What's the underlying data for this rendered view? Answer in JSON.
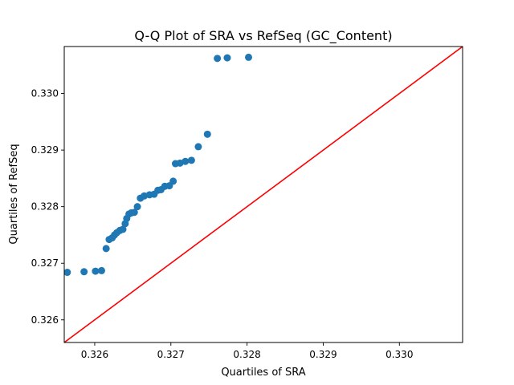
{
  "chart_data": {
    "type": "scatter",
    "title": "Q-Q Plot of SRA vs RefSeq (GC_Content)",
    "xlabel": "Quartiles of SRA",
    "ylabel": "Quartiles of RefSeq",
    "xlim": [
      0.3256,
      0.33083
    ],
    "ylim": [
      0.3256,
      0.33083
    ],
    "x_ticks": [
      0.326,
      0.327,
      0.328,
      0.329,
      0.33
    ],
    "x_tick_labels": [
      "0.326",
      "0.327",
      "0.328",
      "0.329",
      "0.330"
    ],
    "y_ticks": [
      0.326,
      0.327,
      0.328,
      0.329,
      0.33
    ],
    "y_tick_labels": [
      "0.326",
      "0.327",
      "0.328",
      "0.329",
      "0.330"
    ],
    "grid": false,
    "legend": "none",
    "marker_color": "#1f77b4",
    "line_color": "#ff0000",
    "reference_line": {
      "from": [
        0.3256,
        0.3256
      ],
      "to": [
        0.33083,
        0.33083
      ]
    },
    "points": {
      "x": [
        0.32564,
        0.32586,
        0.32601,
        0.32609,
        0.32615,
        0.32619,
        0.32623,
        0.32626,
        0.32629,
        0.32633,
        0.32637,
        0.3264,
        0.32642,
        0.32645,
        0.32648,
        0.32652,
        0.32656,
        0.3266,
        0.32665,
        0.32672,
        0.32678,
        0.32683,
        0.32687,
        0.32692,
        0.32698,
        0.32703,
        0.32706,
        0.32712,
        0.32719,
        0.32727,
        0.32736,
        0.32748,
        0.32761,
        0.32774,
        0.32802
      ],
      "y": [
        0.32684,
        0.32685,
        0.32686,
        0.32687,
        0.32726,
        0.32742,
        0.32745,
        0.3275,
        0.32754,
        0.32758,
        0.3276,
        0.3277,
        0.32779,
        0.32787,
        0.32789,
        0.3279,
        0.328,
        0.32815,
        0.32819,
        0.32821,
        0.32822,
        0.32829,
        0.3283,
        0.32836,
        0.32837,
        0.32845,
        0.32876,
        0.32877,
        0.3288,
        0.32882,
        0.32906,
        0.32928,
        0.33062,
        0.33063,
        0.33064
      ]
    }
  }
}
